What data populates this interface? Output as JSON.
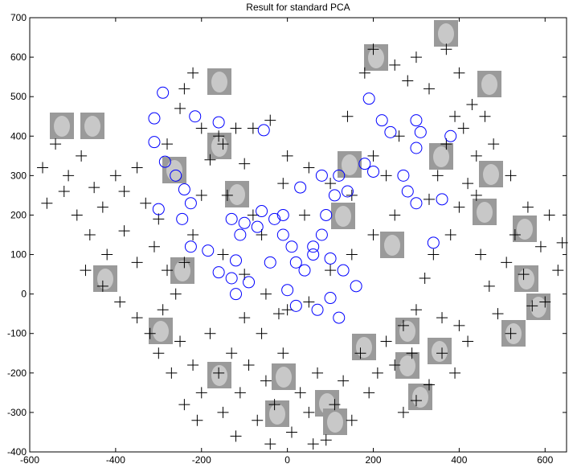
{
  "chart_data": {
    "type": "scatter",
    "title": "Result for standard PCA",
    "xlim": [
      -600,
      650
    ],
    "ylim": [
      -400,
      700
    ],
    "xticks": [
      -600,
      -400,
      -200,
      0,
      200,
      400,
      600
    ],
    "yticks": [
      -400,
      -300,
      -200,
      -100,
      0,
      100,
      200,
      300,
      400,
      500,
      600,
      700
    ],
    "series": [
      {
        "marker": "+",
        "color": "#000000",
        "x": [
          -570,
          -540,
          -510,
          -480,
          -450,
          -520,
          -560,
          -490,
          -430,
          -400,
          -380,
          -350,
          -330,
          -300,
          -460,
          -420,
          -380,
          -350,
          -310,
          -280,
          -470,
          -430,
          -390,
          -350,
          -320,
          -290,
          -260,
          -240,
          -220,
          -200,
          -180,
          -160,
          -240,
          -220,
          -250,
          -200,
          -280,
          -150,
          -120,
          -100,
          -300,
          -270,
          -250,
          -220,
          -200,
          -180,
          -160,
          -150,
          -130,
          -110,
          -90,
          -70,
          -50,
          -30,
          -10,
          10,
          30,
          50,
          70,
          90,
          110,
          130,
          150,
          170,
          190,
          210,
          230,
          250,
          270,
          290,
          -100,
          -60,
          -20,
          -210,
          -240,
          -120,
          -40,
          60,
          300,
          320,
          340,
          360,
          380,
          400,
          420,
          440,
          410,
          390,
          370,
          350,
          330,
          450,
          470,
          490,
          510,
          530,
          550,
          570,
          590,
          610,
          630,
          600,
          560,
          520,
          480,
          460,
          440,
          420,
          390,
          360,
          330,
          300,
          270,
          400,
          250,
          280,
          300,
          330,
          370,
          400,
          430,
          200,
          180,
          140,
          -40,
          -80,
          0,
          50,
          100,
          150,
          -10,
          40,
          260,
          230,
          200,
          520,
          640,
          -150,
          -100,
          -50,
          0,
          50,
          100,
          150,
          200,
          250,
          -80,
          -140,
          -60
        ],
        "values": [
          320,
          380,
          300,
          350,
          270,
          260,
          230,
          200,
          220,
          300,
          260,
          320,
          230,
          190,
          150,
          100,
          160,
          80,
          120,
          60,
          60,
          20,
          -20,
          -60,
          -100,
          -40,
          0,
          80,
          150,
          250,
          340,
          400,
          520,
          560,
          470,
          420,
          380,
          380,
          420,
          330,
          -150,
          -200,
          -120,
          -180,
          -250,
          -100,
          -200,
          -300,
          -150,
          -250,
          -180,
          -320,
          -220,
          -280,
          -150,
          -350,
          -250,
          -300,
          -200,
          -370,
          -280,
          -220,
          -320,
          -150,
          -250,
          -200,
          -120,
          -180,
          -80,
          -150,
          -60,
          -100,
          -50,
          -320,
          -280,
          -360,
          -380,
          -380,
          -40,
          40,
          100,
          -60,
          150,
          220,
          280,
          350,
          420,
          450,
          380,
          300,
          240,
          100,
          20,
          -50,
          80,
          150,
          50,
          -30,
          120,
          200,
          60,
          -20,
          220,
          300,
          380,
          450,
          250,
          -120,
          -200,
          -150,
          -230,
          -270,
          -300,
          -80,
          580,
          540,
          600,
          520,
          620,
          560,
          480,
          620,
          560,
          450,
          440,
          420,
          350,
          320,
          280,
          250,
          280,
          200,
          400,
          300,
          350,
          -100,
          130,
          100,
          50,
          0,
          -40,
          -20,
          60,
          100,
          150,
          200,
          200,
          250,
          150
        ]
      },
      {
        "marker": "o",
        "color": "#0000ff",
        "x": [
          -290,
          -310,
          -215,
          -160,
          -55,
          -310,
          -285,
          -260,
          -240,
          -225,
          -300,
          -245,
          -225,
          -185,
          -160,
          -130,
          -120,
          -110,
          -130,
          -100,
          -70,
          -60,
          -30,
          -10,
          -10,
          10,
          20,
          40,
          60,
          80,
          90,
          110,
          140,
          120,
          80,
          30,
          60,
          100,
          130,
          160,
          -120,
          -90,
          -40,
          0,
          20,
          70,
          100,
          120,
          190,
          220,
          240,
          300,
          310,
          300,
          180,
          200,
          270,
          280,
          300,
          340,
          360,
          380
        ],
        "values": [
          510,
          445,
          450,
          435,
          415,
          385,
          335,
          300,
          265,
          230,
          215,
          190,
          120,
          110,
          55,
          40,
          85,
          150,
          190,
          180,
          170,
          210,
          190,
          200,
          150,
          120,
          80,
          60,
          100,
          150,
          200,
          250,
          260,
          300,
          300,
          270,
          120,
          90,
          60,
          20,
          0,
          30,
          80,
          10,
          -30,
          -40,
          -10,
          -60,
          495,
          440,
          410,
          440,
          410,
          370,
          330,
          310,
          300,
          260,
          230,
          130,
          240,
          400
        ]
      }
    ]
  }
}
